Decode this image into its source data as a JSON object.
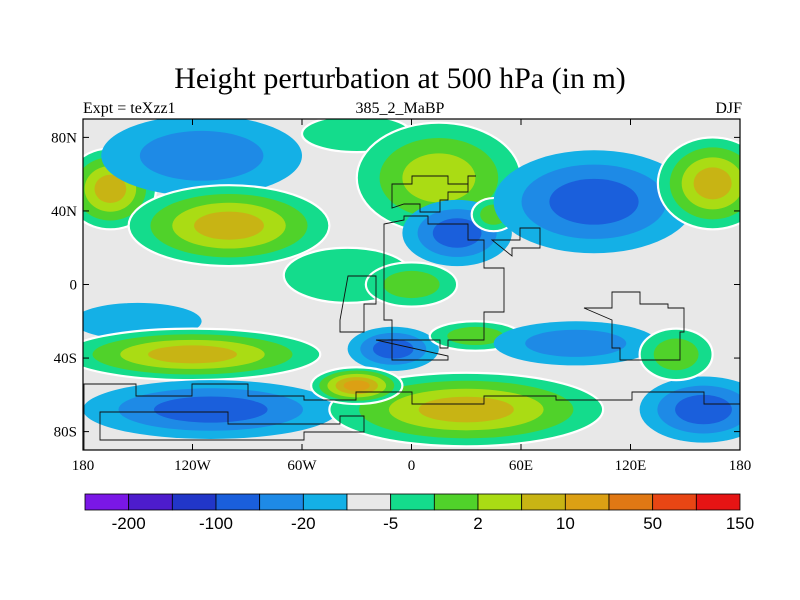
{
  "chart_data": {
    "type": "heatmap",
    "title": "Height perturbation at 500 hPa (in m)",
    "subtitle_left": "Expt = teXzz1",
    "subtitle_center": "385_2_MaBP",
    "subtitle_right": "DJF",
    "xlim": [
      -180,
      180
    ],
    "ylim": [
      -90,
      90
    ],
    "x_ticks": [
      {
        "value": -180,
        "label": "180"
      },
      {
        "value": -120,
        "label": "120W"
      },
      {
        "value": -60,
        "label": "60W"
      },
      {
        "value": 0,
        "label": "0"
      },
      {
        "value": 60,
        "label": "60E"
      },
      {
        "value": 120,
        "label": "120E"
      },
      {
        "value": 180,
        "label": "180"
      }
    ],
    "y_ticks": [
      {
        "value": 80,
        "label": "80N"
      },
      {
        "value": 40,
        "label": "40N"
      },
      {
        "value": 0,
        "label": "0"
      },
      {
        "value": -40,
        "label": "40S"
      },
      {
        "value": -80,
        "label": "80S"
      }
    ],
    "colorbar": {
      "colors": [
        "#7a17e6",
        "#4d1ccc",
        "#2136c8",
        "#1a5fdc",
        "#1e8ae6",
        "#14b0e6",
        "#e8e8e8",
        "#14dc8c",
        "#50d22a",
        "#aadc14",
        "#c8b414",
        "#dca014",
        "#e07814",
        "#e84614",
        "#e61414"
      ],
      "labels": [
        {
          "boundary": 1,
          "text": "-200"
        },
        {
          "boundary": 3,
          "text": "-100"
        },
        {
          "boundary": 5,
          "text": "-20"
        },
        {
          "boundary": 7,
          "text": "-5"
        },
        {
          "boundary": 9,
          "text": "2"
        },
        {
          "boundary": 11,
          "text": "10"
        },
        {
          "boundary": 13,
          "text": "50"
        },
        {
          "boundary": 15,
          "text": "150"
        }
      ]
    },
    "field": {
      "background_level": 6,
      "blobs": [
        {
          "lon": -165,
          "lat": 52,
          "rlon": 25,
          "rlat": 22,
          "level": 10
        },
        {
          "lon": -115,
          "lat": 70,
          "rlon": 55,
          "rlat": 22,
          "level": 4
        },
        {
          "lon": -100,
          "lat": 32,
          "rlon": 55,
          "rlat": 22,
          "level": 10
        },
        {
          "lon": -30,
          "lat": 82,
          "rlon": 30,
          "rlat": 10,
          "level": 7
        },
        {
          "lon": 15,
          "lat": 58,
          "rlon": 45,
          "rlat": 30,
          "level": 9
        },
        {
          "lon": 25,
          "lat": 28,
          "rlon": 30,
          "rlat": 18,
          "level": 3
        },
        {
          "lon": 45,
          "lat": 38,
          "rlon": 12,
          "rlat": 9,
          "level": 8
        },
        {
          "lon": 100,
          "lat": 45,
          "rlon": 55,
          "rlat": 28,
          "level": 3
        },
        {
          "lon": 165,
          "lat": 55,
          "rlon": 30,
          "rlat": 25,
          "level": 10
        },
        {
          "lon": -35,
          "lat": 5,
          "rlon": 35,
          "rlat": 15,
          "level": 7
        },
        {
          "lon": 0,
          "lat": 0,
          "rlon": 25,
          "rlat": 12,
          "level": 8
        },
        {
          "lon": -150,
          "lat": -20,
          "rlon": 35,
          "rlat": 10,
          "level": 5
        },
        {
          "lon": -120,
          "lat": -38,
          "rlon": 70,
          "rlat": 14,
          "level": 10
        },
        {
          "lon": -110,
          "lat": -68,
          "rlon": 70,
          "rlat": 16,
          "level": 3
        },
        {
          "lon": -10,
          "lat": -35,
          "rlon": 25,
          "rlat": 12,
          "level": 3
        },
        {
          "lon": 35,
          "lat": -28,
          "rlon": 25,
          "rlat": 8,
          "level": 8
        },
        {
          "lon": 90,
          "lat": -32,
          "rlon": 45,
          "rlat": 12,
          "level": 4
        },
        {
          "lon": 30,
          "lat": -68,
          "rlon": 75,
          "rlat": 20,
          "level": 10
        },
        {
          "lon": -30,
          "lat": -55,
          "rlon": 25,
          "rlat": 10,
          "level": 11
        },
        {
          "lon": 160,
          "lat": -68,
          "rlon": 35,
          "rlat": 18,
          "level": 3
        },
        {
          "lon": 145,
          "lat": -38,
          "rlon": 20,
          "rlat": 14,
          "level": 8
        }
      ]
    }
  }
}
